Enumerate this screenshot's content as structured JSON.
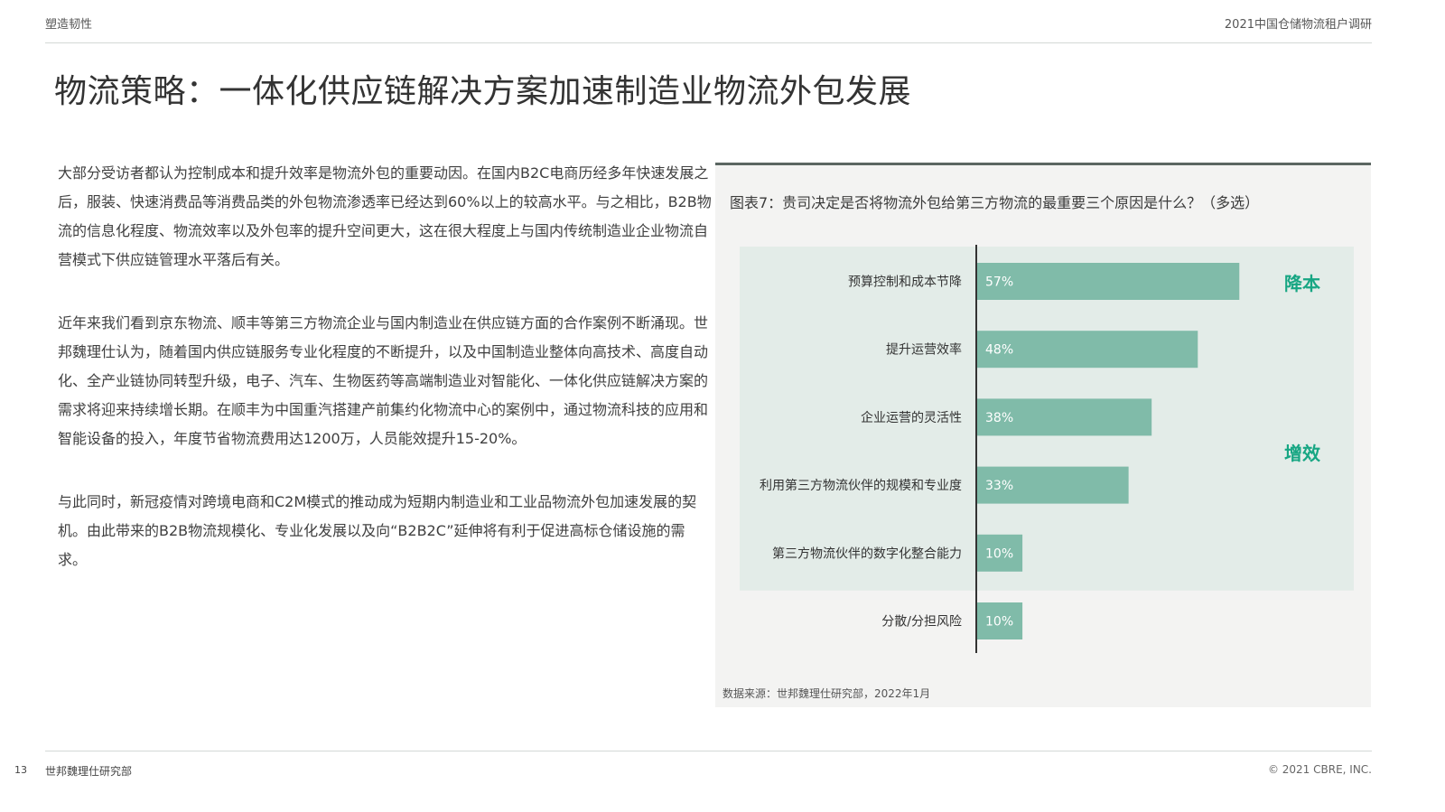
{
  "header": {
    "left": "塑造韧性",
    "right": "2021中国仓储物流租户调研"
  },
  "title": "物流策略：一体化供应链解决方案加速制造业物流外包发展",
  "paragraphs": [
    "大部分受访者都认为控制成本和提升效率是物流外包的重要动因。在国内B2C电商历经多年快速发展之后，服装、快速消费品等消费品类的外包物流渗透率已经达到60%以上的较高水平。与之相比，B2B物流的信息化程度、物流效率以及外包率的提升空间更大，这在很大程度上与国内传统制造业企业物流自营模式下供应链管理水平落后有关。",
    "近年来我们看到京东物流、顺丰等第三方物流企业与国内制造业在供应链方面的合作案例不断涌现。世邦魏理仕认为，随着国内供应链服务专业化程度的不断提升，以及中国制造业整体向高技术、高度自动化、全产业链协同转型升级，电子、汽车、生物医药等高端制造业对智能化、一体化供应链解决方案的需求将迎来持续增长期。在顺丰为中国重汽搭建产前集约化物流中心的案例中，通过物流科技的应用和智能设备的投入，年度节省物流费用达1200万，人员能效提升15-20%。",
    "与此同时，新冠疫情对跨境电商和C2M模式的推动成为短期内制造业和工业品物流外包加速发展的契机。由此带来的B2B物流规模化、专业化发展以及向“B2B2C”延伸将有利于促进高标仓储设施的需求。"
  ],
  "chart_title": "图表7：贵司决定是否将物流外包给第三方物流的最重要三个原因是什么？（多选）",
  "source": "数据来源：世邦魏理仕研究部，2022年1月",
  "colors": {
    "bar": "#80bba9",
    "group_bg": "#e3ece8",
    "group_label": "#17a683",
    "axis": "#333333",
    "value_label": "#ffffff"
  },
  "chart_data": {
    "type": "bar",
    "orientation": "horizontal",
    "title": "图表7：贵司决定是否将物流外包给第三方物流的最重要三个原因是什么？（多选）",
    "xlim": [
      0,
      100
    ],
    "categories": [
      "预算控制和成本节降",
      "提升运营效率",
      "企业运营的灵活性",
      "利用第三方物流伙伴的规模和专业度",
      "第三方物流伙伴的数字化整合能力",
      "分散/分担风险"
    ],
    "values": [
      57,
      48,
      38,
      33,
      10,
      10
    ],
    "labels": [
      "57%",
      "48%",
      "38%",
      "33%",
      "10%",
      "10%"
    ],
    "groups": [
      {
        "label": "降本",
        "categories": [
          0
        ]
      },
      {
        "label": "增效",
        "categories": [
          1,
          2,
          3,
          4
        ]
      }
    ]
  },
  "footer": {
    "page": "13",
    "dept": "世邦魏理仕研究部",
    "copyright": "© 2021 CBRE, INC."
  }
}
